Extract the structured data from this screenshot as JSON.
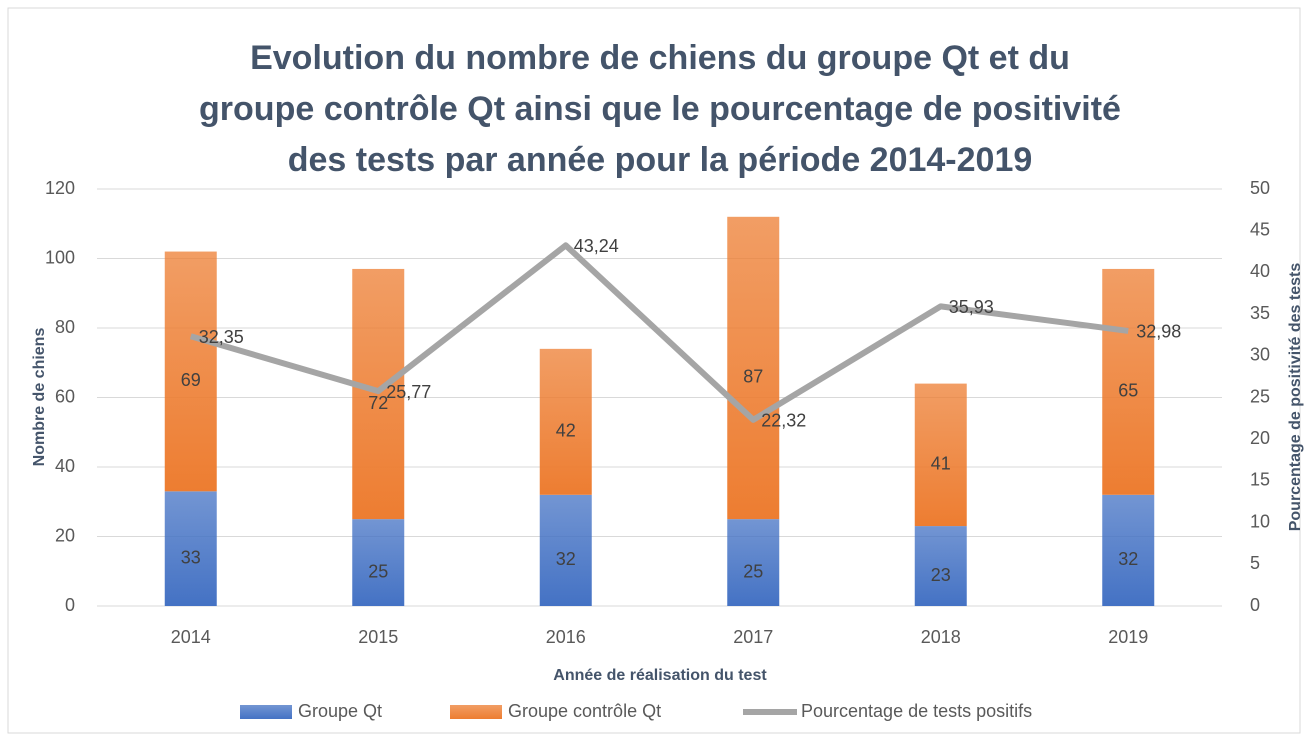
{
  "chart_data": {
    "type": "bar",
    "title": [
      "Evolution du nombre de chiens du groupe Qt et du",
      "groupe contrôle Qt ainsi que le pourcentage de positivité",
      "des tests par année pour la période 2014-2019"
    ],
    "xlabel": "Année de réalisation du test",
    "ylabel": "Nombre de chiens",
    "y2label": "Pourcentage de positivité des tests",
    "categories": [
      "2014",
      "2015",
      "2016",
      "2017",
      "2018",
      "2019"
    ],
    "stacked": true,
    "series": [
      {
        "name": "Groupe Qt",
        "color": "#4472c4",
        "type": "bar",
        "values": [
          33,
          25,
          32,
          25,
          23,
          32
        ]
      },
      {
        "name": "Groupe contrôle Qt",
        "color": "#ed7d31",
        "type": "bar",
        "values": [
          69,
          72,
          42,
          87,
          41,
          65
        ]
      },
      {
        "name": "Pourcentage de tests positifs",
        "color": "#a5a5a5",
        "type": "line",
        "axis": "y2",
        "values": [
          32.35,
          25.77,
          43.24,
          22.32,
          35.93,
          32.98
        ],
        "value_labels": [
          "32,35",
          "25,77",
          "43,24",
          "22,32",
          "35,93",
          "32,98"
        ]
      }
    ],
    "ylim": [
      0,
      120
    ],
    "yticks": [
      0,
      20,
      40,
      60,
      80,
      100,
      120
    ],
    "y2lim": [
      0,
      50
    ],
    "y2ticks": [
      0,
      5,
      10,
      15,
      20,
      25,
      30,
      35,
      40,
      45,
      50
    ],
    "grid": true,
    "legend": "bottom"
  }
}
